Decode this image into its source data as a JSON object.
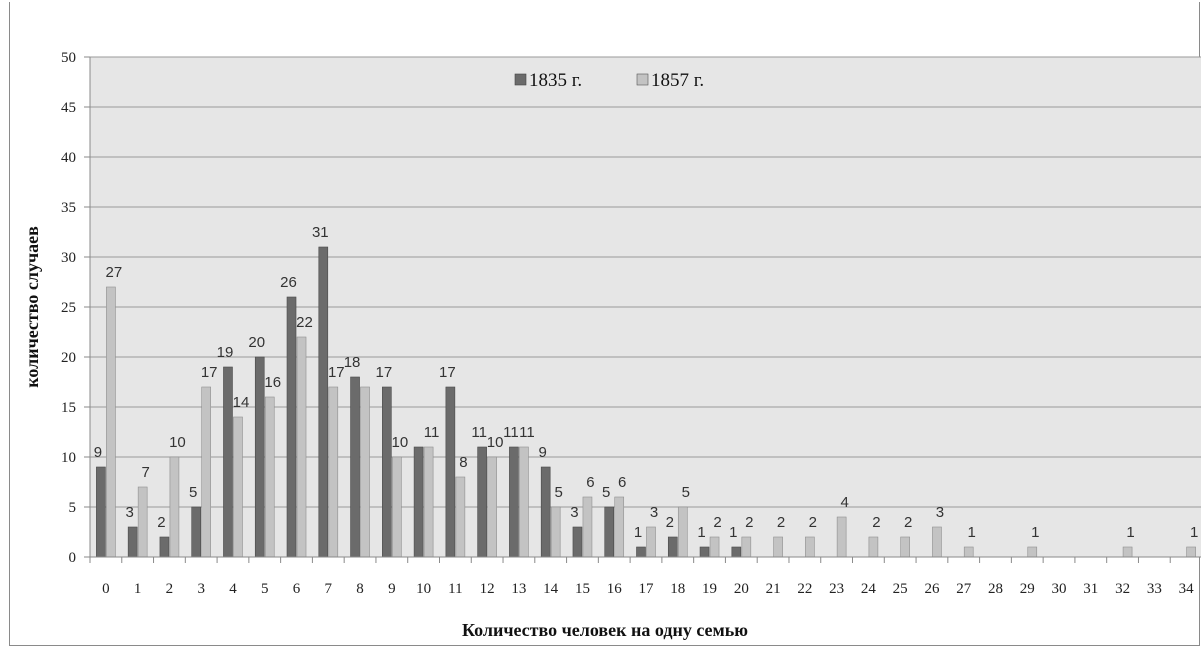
{
  "chart_data": {
    "type": "bar",
    "categories": [
      "0",
      "1",
      "2",
      "3",
      "4",
      "5",
      "6",
      "7",
      "8",
      "9",
      "10",
      "11",
      "12",
      "13",
      "14",
      "15",
      "16",
      "17",
      "18",
      "19",
      "20",
      "21",
      "22",
      "23",
      "24",
      "25",
      "26",
      "27",
      "28",
      "29",
      "30",
      "31",
      "32",
      "33",
      "34"
    ],
    "series": [
      {
        "name": "1835 г.",
        "color": "#6b6b6b",
        "values": [
          9,
          3,
          2,
          5,
          19,
          20,
          26,
          31,
          18,
          17,
          11,
          17,
          11,
          11,
          9,
          3,
          5,
          1,
          2,
          1,
          1,
          null,
          null,
          null,
          null,
          null,
          null,
          null,
          null,
          null,
          null,
          null,
          null,
          null,
          null
        ]
      },
      {
        "name": "1857 г.",
        "color": "#c3c3c3",
        "values": [
          27,
          7,
          10,
          17,
          14,
          16,
          22,
          17,
          17,
          10,
          11,
          8,
          10,
          11,
          5,
          6,
          6,
          3,
          5,
          2,
          2,
          2,
          2,
          4,
          2,
          2,
          3,
          1,
          null,
          1,
          null,
          null,
          1,
          null,
          1
        ]
      }
    ],
    "data_labels_1835": [
      "9",
      "3",
      "2",
      "5",
      "19",
      "20",
      "26",
      "31",
      "18",
      "17",
      "",
      "17",
      "11",
      "11",
      "9",
      "3",
      "5",
      "1",
      "2",
      "1",
      "1",
      "",
      "",
      "",
      "",
      "",
      "",
      "",
      "",
      "",
      "",
      "",
      "",
      "",
      ""
    ],
    "data_labels_1857": [
      "27",
      "7",
      "10",
      "17",
      "14",
      "16",
      "22",
      "17",
      "",
      "10",
      "11",
      "8",
      "10",
      "11",
      "5",
      "6",
      "6",
      "3",
      "5",
      "2",
      "2",
      "2",
      "2",
      "4",
      "2",
      "2",
      "3",
      "1",
      "",
      "1",
      "",
      "",
      "1",
      "",
      "1"
    ],
    "xlabel": "Количество человек на одну семью",
    "ylabel": "количество случаев",
    "ylim": [
      0,
      50
    ],
    "yticks": [
      "0",
      "5",
      "10",
      "15",
      "20",
      "25",
      "30",
      "35",
      "40",
      "45",
      "50"
    ],
    "grid": true,
    "legend_position": "top-center",
    "plot_background": "#e6e6e6"
  }
}
